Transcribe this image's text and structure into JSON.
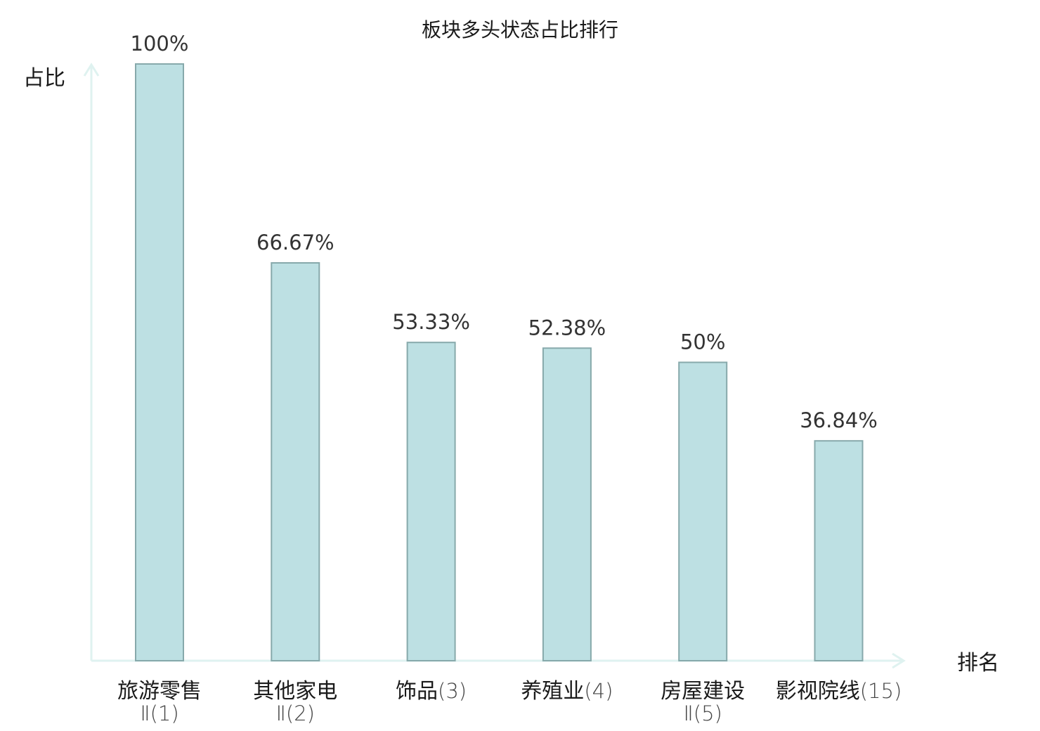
{
  "chart_data": {
    "type": "bar",
    "title": "板块多头状态占比排行",
    "ylabel": "占比",
    "xlabel": "排名",
    "ylim": [
      0,
      100
    ],
    "grid": false,
    "legend": "none",
    "categories": [
      {
        "name": "旅游零售",
        "rank": "Ⅱ(1)",
        "highlight": false
      },
      {
        "name": "其他家电",
        "rank": "Ⅱ(2)",
        "highlight": false
      },
      {
        "name": "饰品",
        "rank": "(3)",
        "highlight": false
      },
      {
        "name": "养殖业",
        "rank": "(4)",
        "highlight": false
      },
      {
        "name": "房屋建设",
        "rank": "Ⅱ(5)",
        "highlight": false
      },
      {
        "name": "影视院线",
        "rank": "(15)",
        "highlight": true
      }
    ],
    "values": [
      100,
      66.67,
      53.33,
      52.38,
      50,
      36.84
    ],
    "value_labels": [
      "100%",
      "66.67%",
      "53.33%",
      "52.38%",
      "50%",
      "36.84%"
    ],
    "colors": {
      "bar_fill": "#bde0e3",
      "bar_stroke": "#87a9ab",
      "axis": "#dff2f0",
      "highlight_text": "#e8141c",
      "text": "#1a1a1a"
    }
  }
}
